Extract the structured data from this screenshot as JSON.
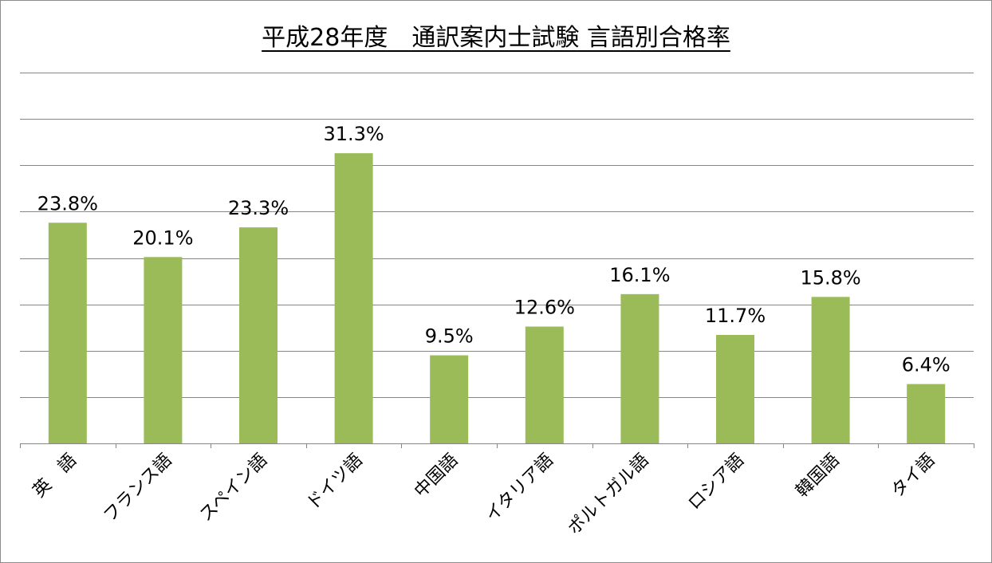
{
  "chart_data": {
    "type": "bar",
    "title": "平成28年度　通訳案内士試験 言語別合格率",
    "xlabel": "",
    "ylabel": "",
    "ylim": [
      0,
      40
    ],
    "grid": true,
    "legend": "none",
    "bar_color": "#9bbb59",
    "grid_color": "#868686",
    "categories": [
      "英　語",
      "フランス語",
      "スペイン語",
      "ドイツ語",
      "中国語",
      "イタリア語",
      "ポルトガル語",
      "ロシア語",
      "韓国語",
      "タイ語"
    ],
    "values": [
      23.8,
      20.1,
      23.3,
      31.3,
      9.5,
      12.6,
      16.1,
      11.7,
      15.8,
      6.4
    ],
    "value_labels": [
      "23.8%",
      "20.1%",
      "23.3%",
      "31.3%",
      "9.5%",
      "12.6%",
      "16.1%",
      "11.7%",
      "15.8%",
      "6.4%"
    ]
  }
}
